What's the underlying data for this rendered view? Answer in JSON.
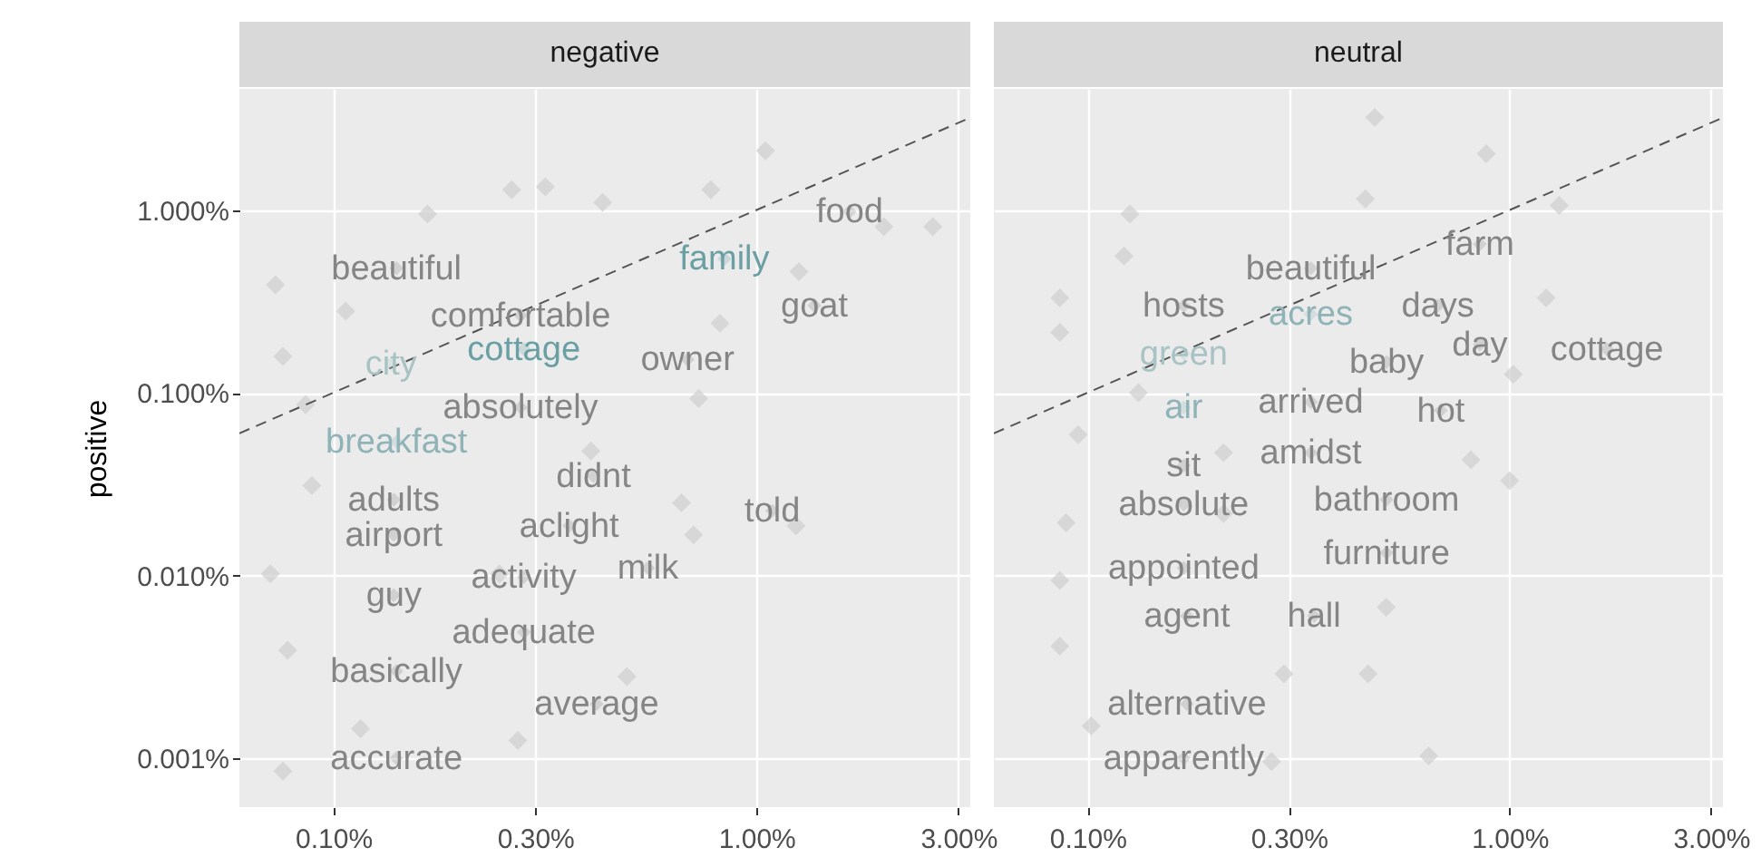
{
  "chart_data": [
    {
      "type": "scatter",
      "title": "negative",
      "ylabel": "positive",
      "log": "xy",
      "grid": true,
      "xlim": [
        0.06,
        3.2
      ],
      "ylim": [
        0.00054,
        4.6
      ],
      "xticks": [
        {
          "value": 0.1,
          "label": "0.10%"
        },
        {
          "value": 0.3,
          "label": "0.30%"
        },
        {
          "value": 1,
          "label": "1.00%"
        },
        {
          "value": 3,
          "label": "3.00%"
        }
      ],
      "yticks": [
        {
          "value": 0.001,
          "label": "0.001%"
        },
        {
          "value": 0.01,
          "label": "0.010%"
        },
        {
          "value": 0.1,
          "label": "0.100%"
        },
        {
          "value": 1,
          "label": "1.000%"
        }
      ],
      "series": [
        {
          "type": "scatter",
          "marker": "diamond",
          "color": "#cfcfcf",
          "x": [
            1.05,
            0.264,
            0.317,
            0.78,
            0.433,
            0.167,
            2.61,
            2.0,
            1.26,
            0.073,
            0.107,
            0.82,
            0.076,
            0.73,
            0.086,
            0.406,
            0.089,
            0.665,
            1.24,
            0.071,
            0.247,
            0.078,
            0.494,
            0.116,
            0.076,
            0.273,
            0.71
          ],
          "values": [
            2.11,
            1.29,
            1.34,
            1.29,
            1.1,
            0.95,
            0.81,
            0.81,
            0.46,
            0.39,
            0.28,
            0.24,
            0.158,
            0.093,
            0.086,
            0.048,
            0.031,
            0.025,
            0.0187,
            0.0102,
            0.0102,
            0.0039,
            0.0028,
            0.00145,
            0.00085,
            0.00125,
            0.0167
          ]
        },
        {
          "type": "line",
          "line_style": "dashed",
          "color": "#555555",
          "x": [
            0.06,
            3.2
          ],
          "values": [
            0.06,
            3.2
          ]
        },
        {
          "type": "scatter",
          "marker": "diamond",
          "x": [
            1.66,
            0.84,
            1.37,
            0.141,
            0.277,
            0.282,
            0.137,
            0.687,
            0.277,
            0.141,
            0.412,
            0.139,
            1.09,
            0.139,
            0.361,
            0.282,
            0.554,
            0.139,
            0.282,
            0.141,
            0.419,
            0.141
          ],
          "values": [
            0.98,
            0.54,
            0.3,
            0.48,
            0.265,
            0.173,
            0.144,
            0.152,
            0.083,
            0.054,
            0.035,
            0.026,
            0.0226,
            0.0167,
            0.0187,
            0.0098,
            0.011,
            0.0078,
            0.0049,
            0.003,
            0.00198,
            0.001
          ],
          "colors": [
            "#858585",
            "#6a9fa3",
            "#858585",
            "#858585",
            "#858585",
            "#6a9fa3",
            "#a9c3c5",
            "#858585",
            "#858585",
            "#8fb3b6",
            "#858585",
            "#858585",
            "#858585",
            "#858585",
            "#858585",
            "#858585",
            "#858585",
            "#858585",
            "#858585",
            "#858585",
            "#858585",
            "#858585"
          ],
          "value_labels": [
            "food",
            "family",
            "goat",
            "beautiful",
            "comfortable",
            "cottage",
            "city",
            "owner",
            "absolutely",
            "breakfast",
            "didnt",
            "adults",
            "told",
            "airport",
            "aclight",
            "activity",
            "milk",
            "guy",
            "adequate",
            "basically",
            "average",
            "accurate"
          ]
        }
      ]
    },
    {
      "type": "scatter",
      "title": "neutral",
      "log": "xy",
      "grid": true,
      "tick_labels": "x",
      "xlim": [
        0.06,
        3.2
      ],
      "ylim": [
        0.00054,
        4.6
      ],
      "xticks": [
        {
          "value": 0.1,
          "label": "0.10%"
        },
        {
          "value": 0.3,
          "label": "0.30%"
        },
        {
          "value": 1,
          "label": "1.00%"
        },
        {
          "value": 3,
          "label": "3.00%"
        }
      ],
      "yticks": [
        {
          "value": 0.001,
          "label": null
        },
        {
          "value": 0.01,
          "label": null
        },
        {
          "value": 0.1,
          "label": null
        },
        {
          "value": 1,
          "label": null
        }
      ],
      "series": [
        {
          "type": "scatter",
          "marker": "diamond",
          "color": "#cfcfcf",
          "x": [
            0.479,
            0.88,
            0.455,
            0.126,
            1.31,
            0.122,
            0.086,
            1.22,
            0.086,
            1.02,
            0.095,
            0.81,
            1.0,
            0.089,
            0.21,
            0.086,
            0.51,
            0.086,
            0.462,
            0.292,
            0.643,
            0.102,
            0.21,
            0.132,
            0.273
          ],
          "values": [
            3.21,
            2.03,
            1.15,
            0.95,
            1.06,
            0.56,
            0.33,
            0.33,
            0.214,
            0.126,
            0.059,
            0.043,
            0.033,
            0.0194,
            0.0218,
            0.0094,
            0.0067,
            0.0041,
            0.0029,
            0.0029,
            0.00103,
            0.0015,
            0.047,
            0.1,
            0.00096
          ]
        },
        {
          "type": "line",
          "line_style": "dashed",
          "color": "#555555",
          "x": [
            0.06,
            3.2
          ],
          "values": [
            0.06,
            3.2
          ]
        },
        {
          "type": "scatter",
          "marker": "diamond",
          "x": [
            0.85,
            0.338,
            0.169,
            0.338,
            0.676,
            0.85,
            1.7,
            0.169,
            0.511,
            0.169,
            0.338,
            0.687,
            0.169,
            0.338,
            0.169,
            0.511,
            0.169,
            0.511,
            0.172,
            0.344,
            0.172,
            0.169
          ],
          "values": [
            0.65,
            0.48,
            0.3,
            0.27,
            0.3,
            0.184,
            0.173,
            0.164,
            0.147,
            0.083,
            0.089,
            0.08,
            0.04,
            0.047,
            0.0245,
            0.026,
            0.011,
            0.0133,
            0.006,
            0.006,
            0.00198,
            0.001
          ],
          "colors": [
            "#858585",
            "#858585",
            "#858585",
            "#8fb3b6",
            "#858585",
            "#858585",
            "#858585",
            "#a9c3c5",
            "#858585",
            "#8fb3b6",
            "#858585",
            "#858585",
            "#858585",
            "#858585",
            "#858585",
            "#858585",
            "#858585",
            "#858585",
            "#858585",
            "#858585",
            "#858585",
            "#858585"
          ],
          "value_labels": [
            "farm",
            "beautiful",
            "hosts",
            "acres",
            "days",
            "day",
            "cottage",
            "green",
            "baby",
            "air",
            "arrived",
            "hot",
            "sit",
            "amidst",
            "absolute",
            "bathroom",
            "appointed",
            "furniture",
            "agent",
            "hall",
            "alternative",
            "apparently"
          ]
        }
      ]
    }
  ]
}
